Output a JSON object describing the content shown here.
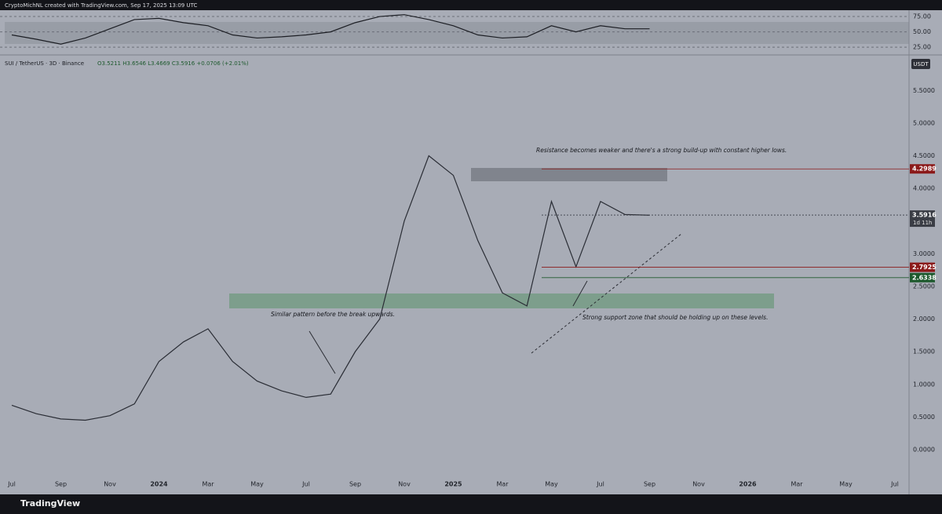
{
  "header": {
    "credit": "CryptoMichNL created with TradingView.com, Sep 17, 2025 13:09 UTC",
    "symbol": "SUI / TetherUS · 3D · Binance",
    "ohlc": "O3.5211 H3.6546 L3.4669 C3.5916 +0.0706 (+2.01%)",
    "currency": "USDT"
  },
  "annotations": [
    "Resistance becomes weaker and there's a strong build-up with constant higher lows.",
    "Similar pattern before the break upwards.",
    "Strong support zone that should be holding up on these levels."
  ],
  "price_tags": [
    {
      "value": 4.2989,
      "label": "4.2989",
      "color": "#8b1a1a"
    },
    {
      "value": 3.5916,
      "label": "3.5916",
      "sub": "1d 11h",
      "color": "#3a3d45"
    },
    {
      "value": 2.7925,
      "label": "2.7925",
      "color": "#8b1a1a"
    },
    {
      "value": 2.6338,
      "label": "2.6338",
      "color": "#1e5a2e"
    }
  ],
  "footer": {
    "logo": "TradingView"
  },
  "chart_data": [
    {
      "type": "line",
      "name": "price",
      "color": "#2a2d35",
      "categories": [
        "Jul",
        null,
        "Sep",
        null,
        "Nov",
        null,
        "2024",
        null,
        "Mar",
        null,
        "May",
        null,
        "Jul",
        null,
        "Sep",
        null,
        "Nov",
        null,
        "2025",
        null,
        "Mar",
        null,
        "May",
        null,
        "Jul",
        null,
        "Sep",
        null,
        "Nov",
        null,
        "2026",
        null,
        "Mar",
        null,
        "May",
        null,
        "Jul"
      ],
      "values": [
        0.68,
        0.55,
        0.47,
        0.45,
        0.52,
        0.7,
        1.35,
        1.65,
        1.85,
        1.35,
        1.05,
        0.9,
        0.8,
        0.85,
        1.5,
        2.0,
        3.5,
        4.5,
        4.2,
        3.2,
        2.4,
        2.2,
        3.8,
        2.8,
        3.8,
        3.6,
        3.59,
        null,
        null,
        null,
        null,
        null,
        null,
        null,
        null,
        null,
        null
      ],
      "ylim": [
        -0.445,
        6.02
      ],
      "yticks": [
        {
          "value": 0,
          "label": "0.0000"
        },
        {
          "value": 0.5,
          "label": "0.5000"
        },
        {
          "value": 1,
          "label": "1.0000"
        },
        {
          "value": 1.5,
          "label": "1.5000"
        },
        {
          "value": 2,
          "label": "2.0000"
        },
        {
          "value": 2.5,
          "label": "2.5000"
        },
        {
          "value": 3,
          "label": "3.0000"
        },
        {
          "value": 4,
          "label": "4.0000"
        },
        {
          "value": 4.5,
          "label": "4.5000"
        },
        {
          "value": 5,
          "label": "5.0000"
        },
        {
          "value": 5.5,
          "label": "5.5000"
        }
      ]
    },
    {
      "type": "line",
      "name": "rsi",
      "color": "#1c1e24",
      "values": [
        45,
        38,
        30,
        40,
        55,
        70,
        72,
        65,
        60,
        45,
        40,
        42,
        45,
        50,
        65,
        75,
        78,
        70,
        60,
        45,
        40,
        42,
        60,
        50,
        60,
        55,
        55
      ],
      "ylim": [
        15,
        84
      ],
      "yticks": [
        {
          "value": 25,
          "label": "25.00"
        },
        {
          "value": 50,
          "label": "50.00"
        },
        {
          "value": 75,
          "label": "75.00"
        }
      ]
    }
  ]
}
